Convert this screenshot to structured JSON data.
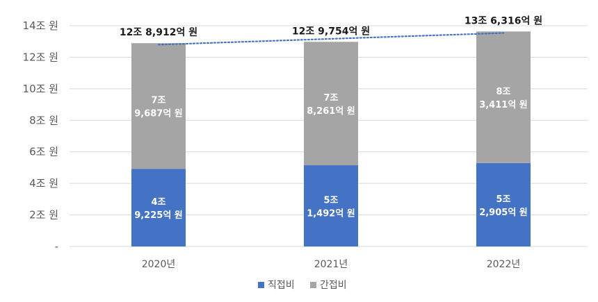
{
  "chart_data": {
    "type": "bar",
    "stacked": true,
    "categories": [
      "2020년",
      "2021년",
      "2022년"
    ],
    "series": [
      {
        "name": "직접비",
        "color": "#4472C4",
        "values": [
          4.9225,
          5.1492,
          5.2905
        ],
        "labels": [
          [
            "4조",
            "9,225억 원"
          ],
          [
            "5조",
            "1,492억 원"
          ],
          [
            "5조",
            "2,905억 원"
          ]
        ]
      },
      {
        "name": "간접비",
        "color": "#A5A5A5",
        "values": [
          7.9687,
          7.8261,
          8.3411
        ],
        "labels": [
          [
            "7조",
            "9,687억 원"
          ],
          [
            "7조",
            "8,261억 원"
          ],
          [
            "8조",
            "3,411억 원"
          ]
        ]
      }
    ],
    "totals": [
      12.8912,
      12.9754,
      13.6316
    ],
    "total_labels": [
      "12조 8,912억 원",
      "12조 9,754억 원",
      "13조 6,316억 원"
    ],
    "y_ticks": [
      {
        "value": 0,
        "label": "-"
      },
      {
        "value": 2,
        "label": "2조 원"
      },
      {
        "value": 4,
        "label": "4조 원"
      },
      {
        "value": 6,
        "label": "6조 원"
      },
      {
        "value": 8,
        "label": "8조 원"
      },
      {
        "value": 10,
        "label": "10조 원"
      },
      {
        "value": 12,
        "label": "12조 원"
      },
      {
        "value": 14,
        "label": "14조 원"
      }
    ],
    "ylim": [
      0,
      14
    ],
    "trendline": {
      "style": "dotted",
      "color": "#4472C4"
    },
    "grid": true,
    "legend_position": "bottom",
    "title": "",
    "xlabel": "",
    "ylabel": ""
  }
}
